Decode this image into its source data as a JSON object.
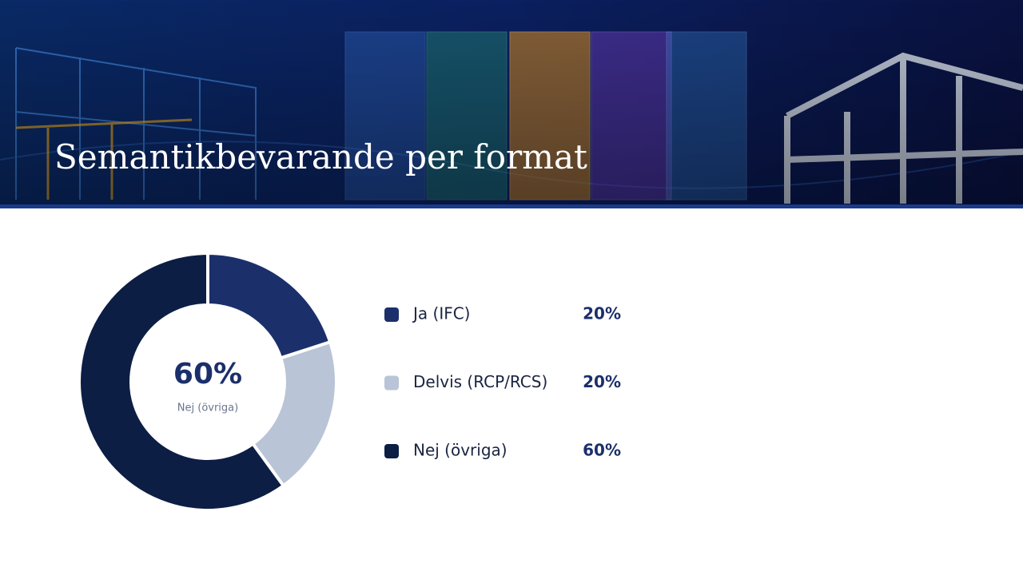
{
  "chart_data": {
    "type": "pie",
    "title": "Semantikbevarande per format",
    "categories": [
      "Ja (IFC)",
      "Delvis (RCP/RCS)",
      "Nej (övriga)"
    ],
    "values": [
      20,
      20,
      60
    ],
    "value_labels": [
      "20%",
      "20%",
      "60%"
    ],
    "colors": [
      "#1b2f6b",
      "#b9c4d6",
      "#0c1e44"
    ]
  }
}
